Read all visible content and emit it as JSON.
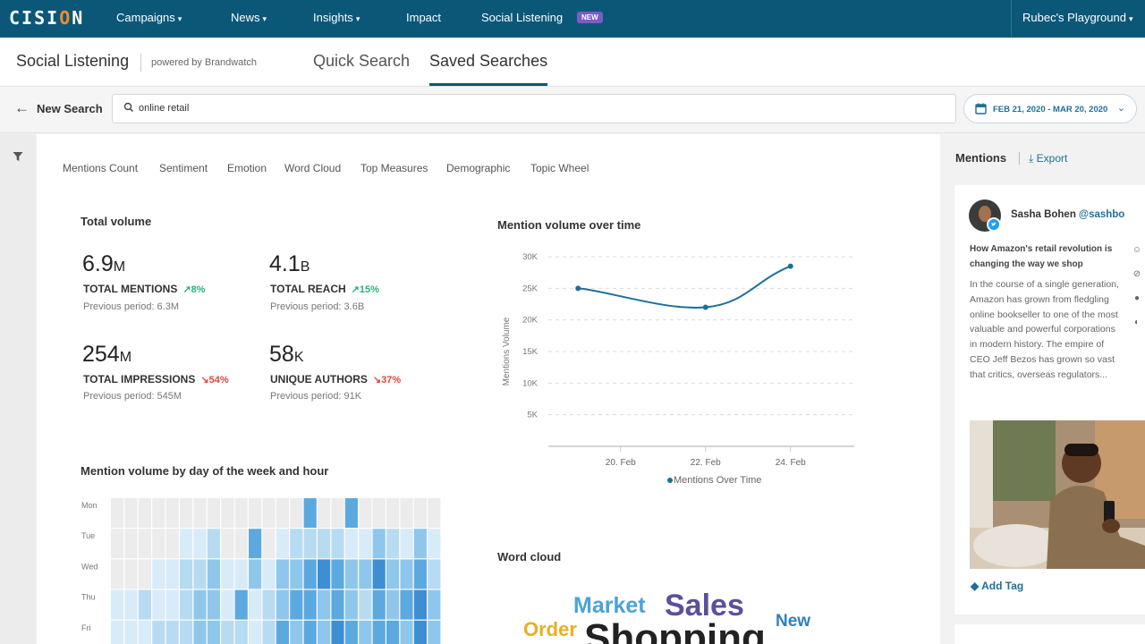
{
  "app": {
    "logo": "CISION",
    "nav": [
      {
        "label": "Campaigns",
        "has_caret": true
      },
      {
        "label": "News",
        "has_caret": true
      },
      {
        "label": "Insights",
        "has_caret": true
      },
      {
        "label": "Impact",
        "has_caret": false
      },
      {
        "label": "Social Listening",
        "has_caret": false
      }
    ],
    "nav_badge": "NEW",
    "workspace": "Rubec's Playground"
  },
  "subheader": {
    "title": "Social Listening",
    "powered_by": "powered by Brandwatch",
    "tabs": [
      {
        "label": "Quick Search",
        "active": false
      },
      {
        "label": "Saved Searches",
        "active": true
      }
    ]
  },
  "search": {
    "back_label": "New Search",
    "query": "online retail",
    "date_range": "FEB 21, 2020 - MAR 20, 2020"
  },
  "widget_tabs": [
    "Mentions Count",
    "Sentiment",
    "Emotion",
    "Word Cloud",
    "Top Measures",
    "Demographic",
    "Topic Wheel"
  ],
  "total_volume": {
    "title": "Total volume",
    "metrics": [
      {
        "value": "6.9",
        "unit": "M",
        "label": "TOTAL MENTIONS",
        "change": "8%",
        "direction": "up",
        "previous": "Previous period: 6.3M"
      },
      {
        "value": "4.1",
        "unit": "B",
        "label": "TOTAL REACH",
        "change": "15%",
        "direction": "up",
        "previous": "Previous period: 3.6B"
      },
      {
        "value": "254",
        "unit": "M",
        "label": "TOTAL IMPRESSIONS",
        "change": "54%",
        "direction": "down",
        "previous": "Previous period: 545M"
      },
      {
        "value": "58",
        "unit": "K",
        "label": "UNIQUE AUTHORS",
        "change": "37%",
        "direction": "down",
        "previous": "Previous period: 91K"
      }
    ]
  },
  "chart_data": [
    {
      "type": "line",
      "title": "Mention volume over time",
      "ylabel": "Mentions Volume",
      "xlabel": "",
      "ylim": [
        0,
        30000
      ],
      "yticks": [
        "5K",
        "10K",
        "15K",
        "20K",
        "25K",
        "30K"
      ],
      "xticks": [
        "20. Feb",
        "22. Feb",
        "24. Feb"
      ],
      "x": [
        "19. Feb",
        "22. Feb",
        "24. Feb"
      ],
      "series": [
        {
          "name": "Mentions Over Time",
          "values": [
            25000,
            22000,
            28500
          ]
        }
      ],
      "color": "#1f6f9a",
      "grid": true,
      "legend": "bottom"
    },
    {
      "type": "heatmap",
      "title": "Mention volume by day of the week and hour",
      "rows": [
        "Mon",
        "Tue",
        "Wed",
        "Thu",
        "Fri"
      ],
      "columns": 24,
      "values": [
        [
          0,
          0,
          0,
          0,
          0,
          0,
          0,
          0,
          0,
          0,
          0,
          0,
          0,
          0,
          4,
          0,
          0,
          4,
          0,
          0,
          0,
          0,
          0,
          0
        ],
        [
          0,
          0,
          0,
          0,
          0,
          1,
          1,
          2,
          0,
          0,
          4,
          0,
          1,
          2,
          2,
          2,
          2,
          1,
          1,
          3,
          2,
          1,
          3,
          1
        ],
        [
          0,
          0,
          0,
          1,
          1,
          2,
          2,
          3,
          1,
          1,
          3,
          1,
          3,
          3,
          4,
          5,
          4,
          3,
          3,
          5,
          3,
          3,
          4,
          2
        ],
        [
          1,
          1,
          2,
          1,
          1,
          2,
          3,
          3,
          1,
          4,
          1,
          2,
          3,
          4,
          4,
          3,
          4,
          3,
          2,
          4,
          3,
          4,
          5,
          3
        ],
        [
          1,
          1,
          1,
          2,
          2,
          2,
          3,
          3,
          2,
          2,
          1,
          2,
          4,
          3,
          4,
          3,
          5,
          4,
          3,
          4,
          4,
          3,
          5,
          3
        ]
      ],
      "scale_colors": [
        "#ececec",
        "#d8ebf8",
        "#b7dbf3",
        "#8fc7ec",
        "#5ca9e0",
        "#3d8fd2"
      ]
    }
  ],
  "word_cloud": {
    "title": "Word cloud",
    "words": [
      {
        "text": "Market",
        "color": "#4aa3d6"
      },
      {
        "text": "Sales",
        "color": "#5c4f9c"
      },
      {
        "text": "New",
        "color": "#2e7fbf"
      },
      {
        "text": "Order",
        "color": "#e8b020"
      },
      {
        "text": "Shopping",
        "color": "#222222"
      }
    ]
  },
  "mentions": {
    "title": "Mentions",
    "export_label": "Export",
    "post": {
      "author": "Sasha Bohen",
      "handle": "@sashbo",
      "headline": "How Amazon's retail revolution is changing the way we shop",
      "body": "In the course of a single generation, Amazon has grown from fledgling online bookseller to one of the most valuable and powerful corporations in modern history. The empire of CEO Jeff Bezos has grown so vast that critics, overseas regulators...",
      "add_tag_label": "Add Tag"
    }
  }
}
